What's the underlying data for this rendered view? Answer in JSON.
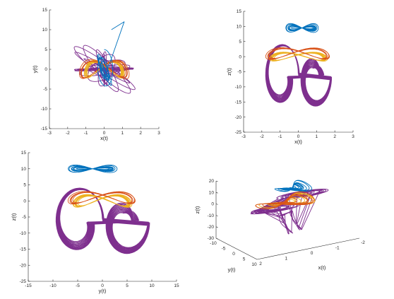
{
  "colors": {
    "purple": "#7e2f8e",
    "orange": "#edb120",
    "red": "#d95319",
    "blue": "#0072bd"
  },
  "chart_data": [
    {
      "id": "xy",
      "type": "line",
      "title": "",
      "xlabel": "x(t)",
      "ylabel": "y(t)",
      "xlim": [
        -3,
        3
      ],
      "ylim": [
        -15,
        15
      ],
      "xticks": [
        "-3",
        "-2",
        "-1",
        "0",
        "1",
        "2",
        "3"
      ],
      "yticks": [
        "-15",
        "-10",
        "-5",
        "0",
        "5",
        "10",
        "15"
      ],
      "grid": false,
      "legend": "none",
      "series": [
        {
          "color": "purple",
          "shape": "attractor",
          "cx": 0,
          "cy": 0,
          "rx": 1.9,
          "ry": 8,
          "loops": 24
        },
        {
          "color": "orange",
          "shape": "band",
          "cx": 0,
          "cy": 0,
          "rx": 1.1,
          "ry": 4.5,
          "loops": 10
        },
        {
          "color": "red",
          "shape": "band",
          "cx": 0,
          "cy": 0,
          "rx": 1.4,
          "ry": 5,
          "loops": 4
        },
        {
          "color": "blue",
          "shape": "transient",
          "cx": 0,
          "cy": 0,
          "rx": 0.5,
          "ry": 5,
          "loops": 8,
          "spike": [
            [
              1.1,
              12
            ],
            [
              0.4,
              10
            ]
          ]
        }
      ]
    },
    {
      "id": "xz",
      "type": "line",
      "title": "",
      "xlabel": "x(t)",
      "ylabel": "z(t)",
      "xlim": [
        -3,
        3
      ],
      "ylim": [
        -25,
        15
      ],
      "xticks": [
        "-3",
        "-2",
        "-1",
        "0",
        "1",
        "2",
        "3"
      ],
      "yticks": [
        "-25",
        "-20",
        "-15",
        "-10",
        "-5",
        "0",
        "5",
        "10",
        "15"
      ],
      "grid": false,
      "legend": "none",
      "series": [
        {
          "color": "purple",
          "shape": "lobes",
          "cx": 0,
          "cy": -5,
          "rx": 2.1,
          "ry": 15,
          "loops": 26
        },
        {
          "color": "orange",
          "shape": "band",
          "cx": 0,
          "cy": 0,
          "rx": 1.6,
          "ry": 3,
          "loops": 10
        },
        {
          "color": "red",
          "shape": "band",
          "cx": 0,
          "cy": 1,
          "rx": 1.8,
          "ry": 4,
          "loops": 5
        },
        {
          "color": "blue",
          "shape": "cap",
          "cx": 0.2,
          "cy": 9.5,
          "rx": 0.9,
          "ry": 2.5,
          "loops": 10
        }
      ]
    },
    {
      "id": "yz",
      "type": "line",
      "title": "",
      "xlabel": "y(t)",
      "ylabel": "z(t)",
      "xlim": [
        -15,
        15
      ],
      "ylim": [
        -25,
        15
      ],
      "xticks": [
        "-15",
        "-10",
        "-5",
        "0",
        "5",
        "10",
        "15"
      ],
      "yticks": [
        "-25",
        "-20",
        "-15",
        "-10",
        "-5",
        "0",
        "5",
        "10",
        "15"
      ],
      "grid": false,
      "legend": "none",
      "series": [
        {
          "color": "purple",
          "shape": "lobes",
          "cx": 0,
          "cy": -5,
          "rx": 11,
          "ry": 15,
          "loops": 26
        },
        {
          "color": "orange",
          "shape": "band",
          "cx": 0,
          "cy": 0,
          "rx": 6,
          "ry": 4,
          "loops": 10
        },
        {
          "color": "red",
          "shape": "band",
          "cx": 0,
          "cy": 1,
          "rx": 7,
          "ry": 4,
          "loops": 5
        },
        {
          "color": "blue",
          "shape": "cap",
          "cx": -2,
          "cy": 10,
          "rx": 5,
          "ry": 2,
          "loops": 10
        }
      ]
    },
    {
      "id": "xyz",
      "type": "line",
      "title": "",
      "xlabel": "x(t)",
      "ylabel": "y(t)",
      "zlabel": "z(t)",
      "xlim": [
        -2,
        2
      ],
      "ylim": [
        -10,
        10
      ],
      "zlim": [
        -30,
        20
      ],
      "xticks": [
        "-2",
        "-1",
        "0",
        "1",
        "2"
      ],
      "yticks": [
        "-10",
        "-5",
        "0",
        "5",
        "10"
      ],
      "zticks": [
        "-30",
        "-20",
        "-10",
        "0",
        "10",
        "20"
      ],
      "grid": false,
      "legend": "none",
      "series": [
        {
          "color": "purple",
          "shape": "funnel",
          "loops": 24
        },
        {
          "color": "orange",
          "shape": "band",
          "loops": 8
        },
        {
          "color": "red",
          "shape": "band",
          "loops": 5
        },
        {
          "color": "blue",
          "shape": "cap",
          "loops": 10
        }
      ]
    }
  ]
}
